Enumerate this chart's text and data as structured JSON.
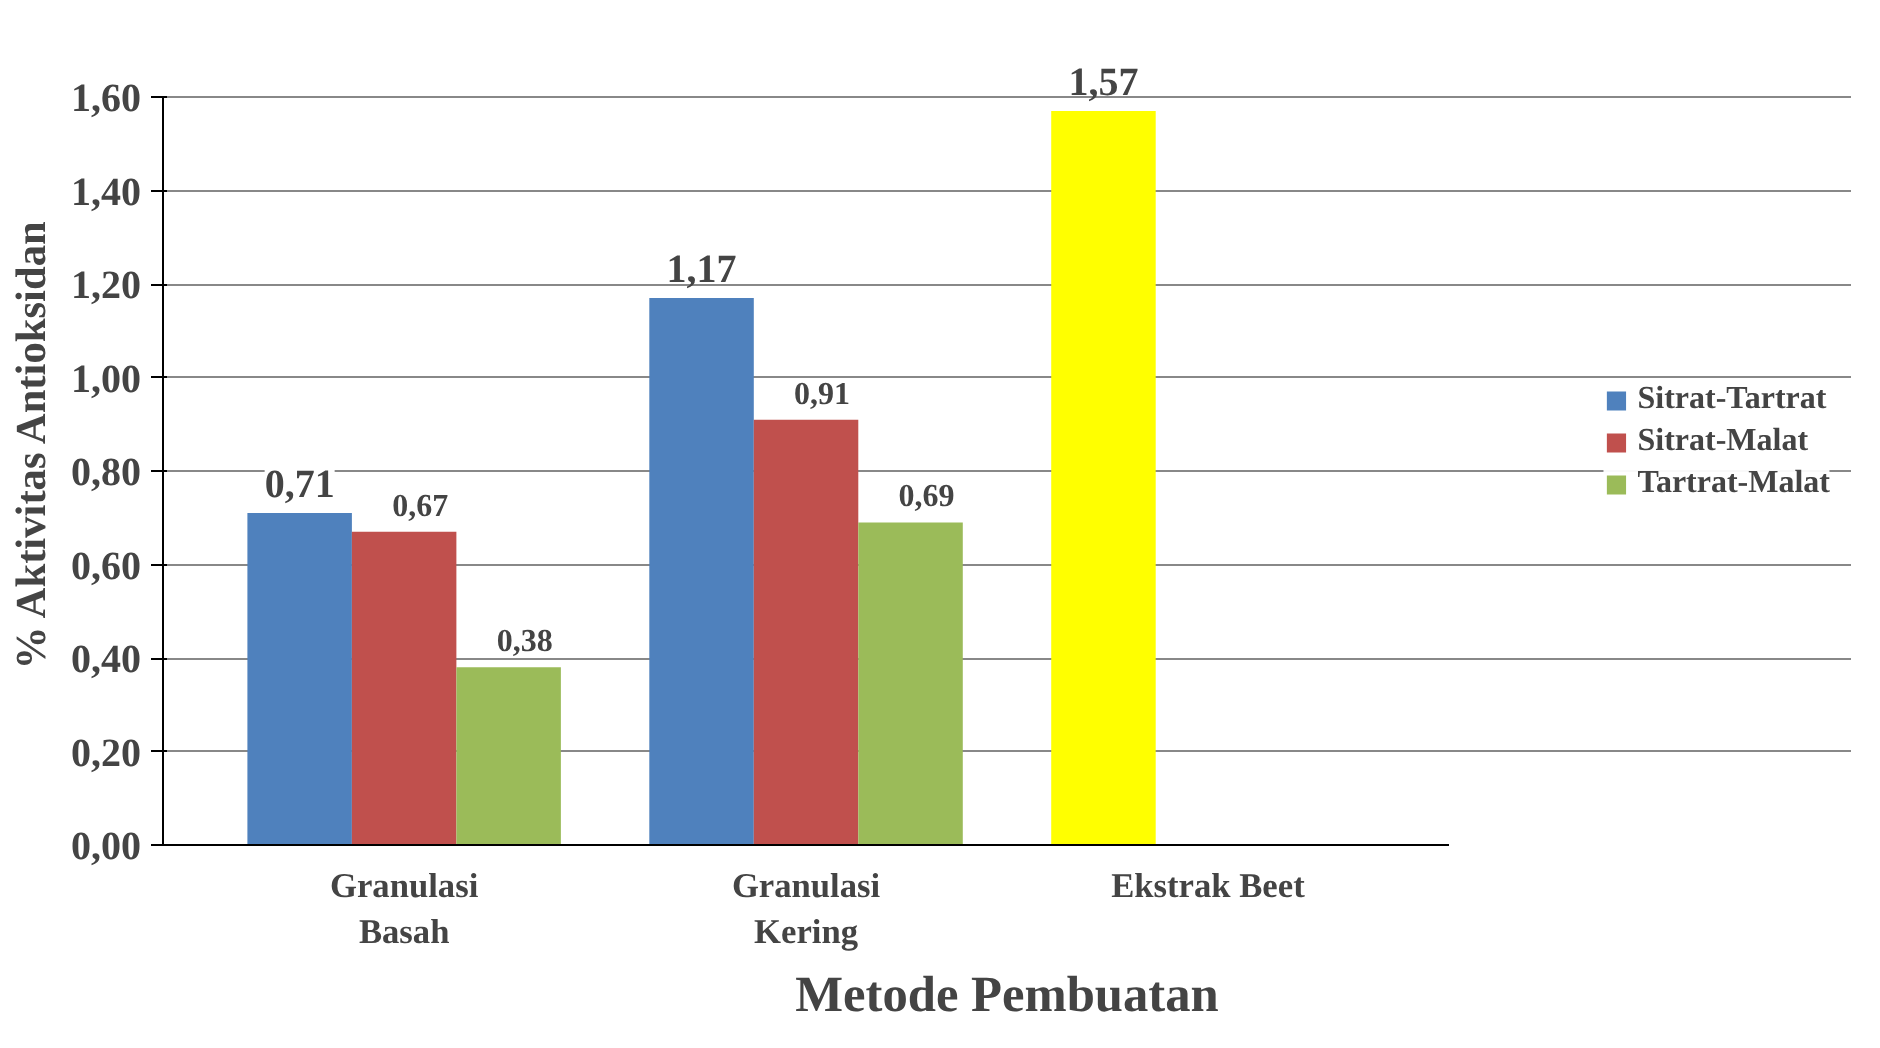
{
  "chart_data": {
    "type": "bar",
    "xlabel": "Metode Pembuatan",
    "ylabel": "% Aktivitas Antioksidan",
    "categories": [
      "Granulasi Basah",
      "Granulasi Kering",
      "Ekstrak Beet"
    ],
    "series": [
      {
        "name": "Sitrat-Tartrat",
        "color": "#4f81bd",
        "colors": [
          "#4f81bd",
          "#4f81bd",
          "#ffff00"
        ],
        "values": [
          0.71,
          1.17,
          1.57
        ],
        "value_labels": [
          "0,71",
          "1,17",
          "1,57"
        ]
      },
      {
        "name": "Sitrat-Malat",
        "color": "#c0504d",
        "values": [
          0.67,
          0.91,
          null
        ],
        "value_labels": [
          "0,67",
          "0,91",
          null
        ]
      },
      {
        "name": "Tartrat-Malat",
        "color": "#9bbb59",
        "values": [
          0.38,
          0.69,
          null
        ],
        "value_labels": [
          "0,38",
          "0,69",
          null
        ]
      }
    ],
    "ylim": [
      0,
      1.6
    ],
    "yticks": [
      {
        "value": 0,
        "label": "0,00"
      },
      {
        "value": 0.2,
        "label": "0,20"
      },
      {
        "value": 0.4,
        "label": "0,40"
      },
      {
        "value": 0.6,
        "label": "0,60"
      },
      {
        "value": 0.8,
        "label": "0,80"
      },
      {
        "value": 1.0,
        "label": "1,00"
      },
      {
        "value": 1.2,
        "label": "1,20"
      },
      {
        "value": 1.4,
        "label": "1,40"
      },
      {
        "value": 1.6,
        "label": "1,60"
      }
    ],
    "grid": "y",
    "legend": "right"
  }
}
